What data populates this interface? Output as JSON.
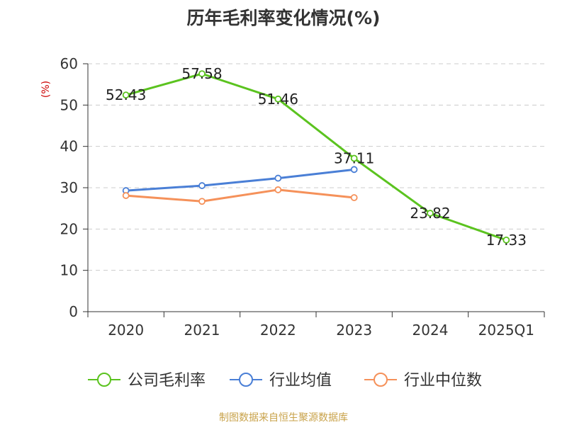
{
  "chart_data": {
    "type": "line",
    "title": "历年毛利率变化情况(%)",
    "ylabel": "(%)",
    "xlabel": "",
    "categories": [
      "2020",
      "2021",
      "2022",
      "2023",
      "2024",
      "2025Q1"
    ],
    "ylim": [
      0,
      60
    ],
    "yticks": [
      0,
      10,
      20,
      30,
      40,
      50,
      60
    ],
    "grid": true,
    "legend_position": "bottom",
    "series": [
      {
        "name": "公司毛利率",
        "color": "#5bc31f",
        "values": [
          52.43,
          57.58,
          51.46,
          37.11,
          23.82,
          17.33
        ],
        "labels": [
          "52.43",
          "57.58",
          "51.46",
          "37.11",
          "23.82",
          "17.33"
        ]
      },
      {
        "name": "行业均值",
        "color": "#4a7fd6",
        "values": [
          29.3,
          30.5,
          32.3,
          34.4,
          null,
          null
        ]
      },
      {
        "name": "行业中位数",
        "color": "#f5915a",
        "values": [
          28.1,
          26.7,
          29.5,
          27.6,
          null,
          null
        ]
      }
    ]
  },
  "source_note": "制图数据来自恒生聚源数据库"
}
